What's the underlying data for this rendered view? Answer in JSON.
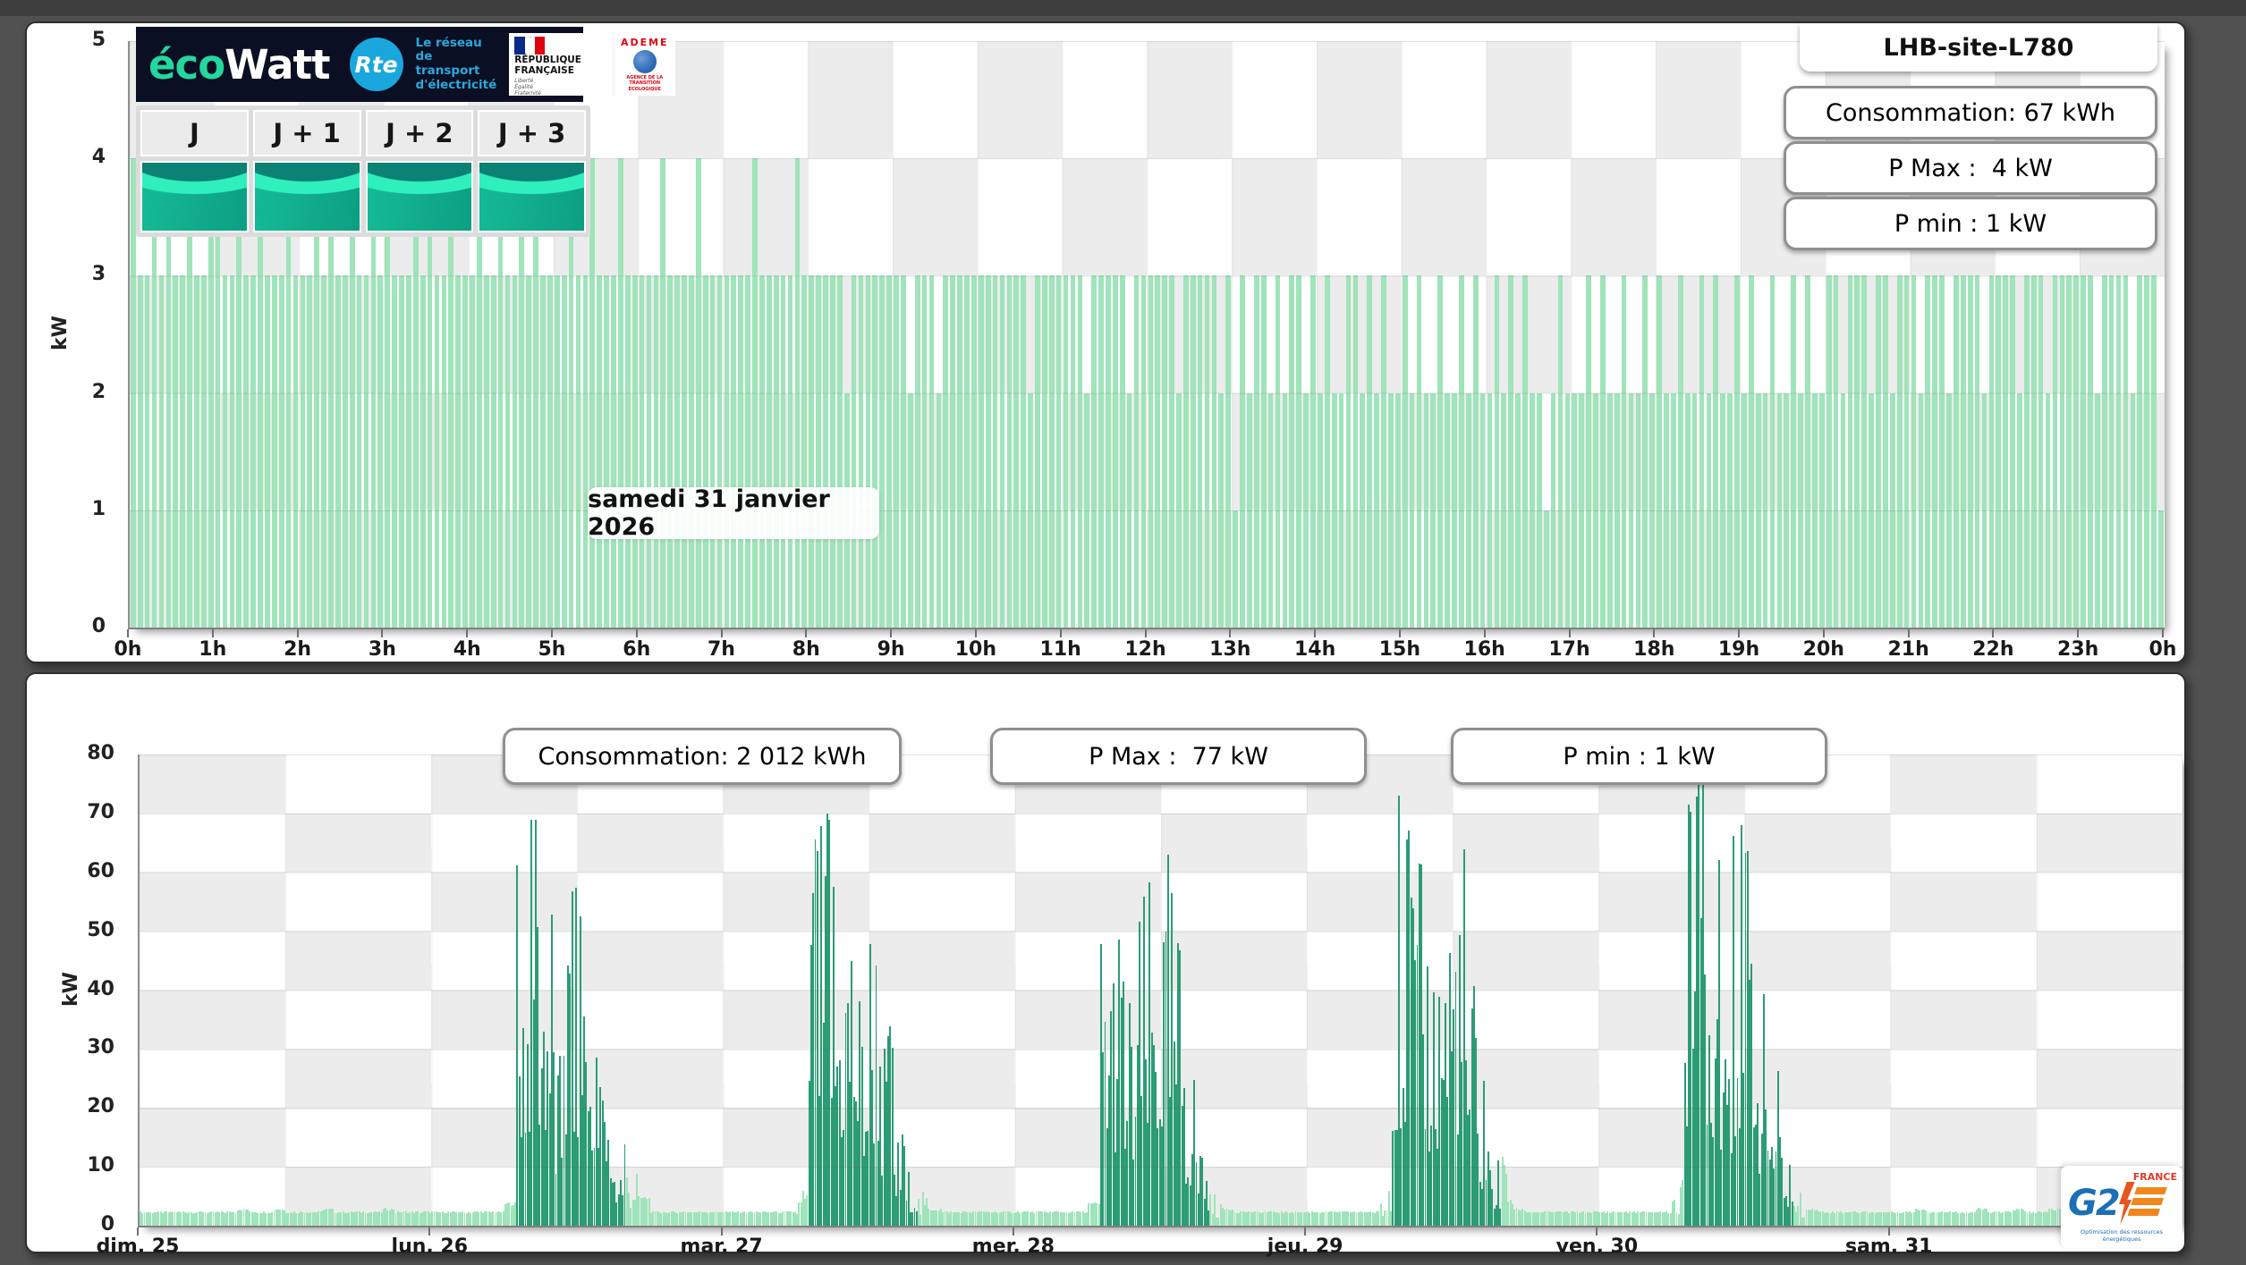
{
  "page": {
    "background": "#515151"
  },
  "logos": {
    "ecowatt_eco": "éco",
    "ecowatt_watt": "Watt",
    "rte_abbr": "Rte",
    "rte_tagline_1": "Le réseau",
    "rte_tagline_2": "de transport",
    "rte_tagline_3": "d'électricité",
    "rf_line1": "RÉPUBLIQUE",
    "rf_line2": "FRANÇAISE",
    "rf_motto": "Liberté\nÉgalité\nFraternité",
    "ademe_name": "ADEME",
    "ademe_sub": "AGENCE DE LA TRANSITION ÉCOLOGIQUE",
    "g2e_g2": "G2",
    "g2e_country": "FRANCE",
    "g2e_tagline": "Optimisation des ressources énergétiques"
  },
  "day_buttons": [
    {
      "label": "J"
    },
    {
      "label": "J + 1"
    },
    {
      "label": "J + 2"
    },
    {
      "label": "J + 3"
    }
  ],
  "top_panel": {
    "title": "LHB-site-L780",
    "stats": [
      {
        "label": "Consommation: 67 kWh"
      },
      {
        "label": "P Max :  4 kW"
      },
      {
        "label": "P min : 1 kW"
      }
    ],
    "date_label": "samedi 31 janvier 2026"
  },
  "bottom_panel": {
    "stats": [
      {
        "label": "Consommation: 2 012 kWh"
      },
      {
        "label": "P Max :  77 kW"
      },
      {
        "label": "P min : 1 kW"
      }
    ]
  },
  "chart_data": [
    {
      "type": "bar",
      "ylabel": "kW",
      "ylim": [
        0,
        5
      ],
      "grid": true,
      "y_tick_labels": [
        "0",
        "1",
        "2",
        "3",
        "4",
        "5"
      ],
      "x_tick_labels": [
        "0h",
        "1h",
        "2h",
        "3h",
        "4h",
        "5h",
        "6h",
        "7h",
        "8h",
        "9h",
        "10h",
        "11h",
        "12h",
        "13h",
        "14h",
        "15h",
        "16h",
        "17h",
        "18h",
        "19h",
        "20h",
        "21h",
        "22h",
        "23h",
        "0h"
      ],
      "interval_minutes": 5,
      "bar_color": "#9fe4ba",
      "annotation": "samedi 31 janvier 2026",
      "stats": {
        "consommation_kwh": 67,
        "p_max_kw": 4,
        "p_min_kw": 1
      },
      "values": [
        4,
        3,
        3,
        4,
        3,
        4,
        3,
        3,
        4,
        3,
        3,
        4,
        4,
        3,
        3,
        4,
        3,
        3,
        4,
        3,
        3,
        3,
        4,
        3,
        3,
        3,
        4,
        3,
        4,
        3,
        3,
        4,
        3,
        3,
        4,
        3,
        4,
        3,
        3,
        3,
        4,
        3,
        4,
        3,
        3,
        4,
        3,
        3,
        3,
        4,
        3,
        3,
        4,
        3,
        3,
        4,
        3,
        4,
        3,
        3,
        3,
        3,
        4,
        3,
        3,
        4,
        3,
        3,
        3,
        4,
        3,
        3,
        3,
        3,
        3,
        4,
        3,
        3,
        3,
        3,
        4,
        3,
        3,
        3,
        3,
        3,
        3,
        3,
        4,
        3,
        3,
        3,
        3,
        3,
        4,
        3,
        3,
        3,
        3,
        3,
        3,
        2,
        3,
        3,
        3,
        3,
        3,
        3,
        3,
        3,
        2,
        3,
        3,
        3,
        2,
        3,
        3,
        3,
        3,
        3,
        3,
        3,
        3,
        3,
        3,
        3,
        3,
        2,
        3,
        3,
        3,
        3,
        3,
        3,
        3,
        2,
        3,
        3,
        3,
        3,
        3,
        2,
        3,
        3,
        3,
        3,
        3,
        3,
        2,
        3,
        3,
        3,
        3,
        3,
        2,
        3,
        1,
        3,
        2,
        3,
        3,
        2,
        3,
        2,
        3,
        3,
        2,
        3,
        2,
        3,
        2,
        2,
        3,
        3,
        2,
        3,
        2,
        3,
        2,
        2,
        3,
        2,
        3,
        2,
        2,
        3,
        2,
        2,
        3,
        2,
        3,
        2,
        2,
        3,
        2,
        3,
        2,
        3,
        2,
        2,
        1,
        2,
        3,
        2,
        2,
        2,
        3,
        2,
        3,
        2,
        2,
        3,
        2,
        2,
        3,
        2,
        3,
        2,
        2,
        3,
        2,
        2,
        3,
        2,
        3,
        2,
        2,
        3,
        2,
        3,
        2,
        2,
        3,
        2,
        2,
        3,
        2,
        3,
        2,
        2,
        3,
        3,
        2,
        3,
        3,
        3,
        2,
        3,
        3,
        2,
        3,
        3,
        3,
        2,
        3,
        3,
        3,
        2,
        3,
        3,
        3,
        3,
        2,
        3,
        3,
        3,
        3,
        2,
        3,
        3,
        3,
        2,
        3,
        3,
        3,
        3,
        3,
        3,
        2,
        3,
        3,
        3,
        3,
        2,
        3,
        3,
        3,
        1
      ]
    },
    {
      "type": "bar",
      "ylabel": "kW",
      "ylim": [
        0,
        80
      ],
      "grid": true,
      "y_tick_labels": [
        "0",
        "10",
        "20",
        "30",
        "40",
        "50",
        "60",
        "70",
        "80"
      ],
      "x_tick_labels": [
        "dim. 25",
        "lun. 26",
        "mar. 27",
        "mer. 28",
        "jeu. 29",
        "ven. 30",
        "sam. 31"
      ],
      "bars_per_hour": 6,
      "colors": {
        "base": "#9fe4ba",
        "peak": "#2b9c74",
        "checker_gray": "#ececec"
      },
      "stats": {
        "consommation_kwh": 2012,
        "p_max_kw": 77,
        "p_min_kw": 1
      },
      "days": [
        {
          "label": "dim. 25",
          "work_hours": null,
          "hourly_peak_kw": [
            2.5,
            2.5,
            2.5,
            2.5,
            2.5,
            2.5,
            2.5,
            2.5,
            3,
            2.5,
            2.5,
            3,
            2.5,
            2.5,
            2.5,
            3,
            2.5,
            2.5,
            2.5,
            2.5,
            3,
            2.5,
            2.5,
            2.5
          ]
        },
        {
          "label": "lun. 26",
          "work_hours": [
            7,
            16
          ],
          "hourly_peak_kw": [
            2.5,
            2.5,
            2.5,
            2.5,
            2.5,
            2.5,
            4,
            62,
            69,
            64,
            30,
            58,
            64,
            30,
            22,
            14,
            13,
            5,
            2.5,
            2.5,
            2.5,
            2.5,
            2.5,
            2.5
          ]
        },
        {
          "label": "mar. 27",
          "work_hours": [
            7,
            16
          ],
          "hourly_peak_kw": [
            2.5,
            2.5,
            2.5,
            2.5,
            2.5,
            2.5,
            6,
            68,
            70,
            58,
            62,
            45,
            60,
            35,
            16,
            10,
            6,
            3,
            2.5,
            2.5,
            2.5,
            2.5,
            2.5,
            2.5
          ]
        },
        {
          "label": "mer. 28",
          "work_hours": [
            7,
            16
          ],
          "hourly_peak_kw": [
            2.5,
            2.5,
            2.5,
            2.5,
            2.5,
            2.5,
            4,
            58,
            56,
            42,
            56,
            60,
            63,
            55,
            30,
            12,
            6,
            3,
            2.5,
            2.5,
            2.5,
            2.5,
            2.5,
            2.5
          ]
        },
        {
          "label": "jeu. 29",
          "work_hours": [
            7,
            16
          ],
          "hourly_peak_kw": [
            2.5,
            2.5,
            2.5,
            2.5,
            2.5,
            2.5,
            6,
            73,
            70,
            62,
            55,
            66,
            70,
            45,
            25,
            12,
            12,
            3,
            2.5,
            2.5,
            2.5,
            2.5,
            2.5,
            2.5
          ]
        },
        {
          "label": "ven. 30",
          "work_hours": [
            7,
            16
          ],
          "hourly_peak_kw": [
            2.5,
            2.5,
            2.5,
            2.5,
            2.5,
            2.5,
            8,
            74,
            77,
            65,
            56,
            68,
            70,
            40,
            28,
            14,
            6,
            3,
            2.5,
            2.5,
            2.5,
            2.5,
            2.5,
            2.5
          ]
        },
        {
          "label": "sam. 31",
          "work_hours": null,
          "hourly_peak_kw": [
            2.5,
            2.5,
            3,
            2.5,
            2.5,
            2.5,
            2.5,
            3,
            2.5,
            2.5,
            3,
            2.5,
            2.5,
            3,
            2.5,
            2.5,
            2.5,
            3,
            2.5,
            2.5,
            2.5,
            2.5,
            2.5,
            2.5
          ]
        }
      ]
    }
  ]
}
